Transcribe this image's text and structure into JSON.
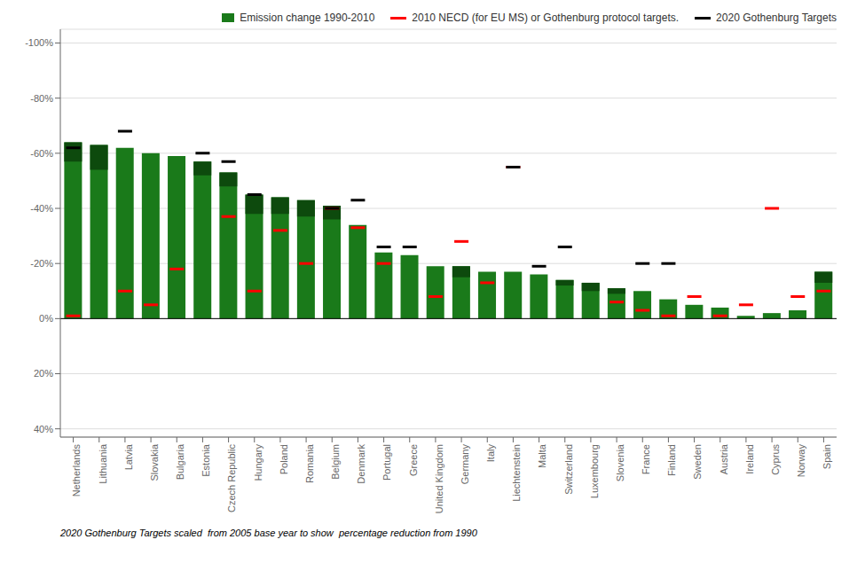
{
  "chart_data": {
    "type": "bar",
    "categories": [
      "Netherlands",
      "Lithuania",
      "Latvia",
      "Slovakia",
      "Bulgaria",
      "Estonia",
      "Czech Republic",
      "Hungary",
      "Poland",
      "Romania",
      "Belgium",
      "Denmark",
      "Portugal",
      "Greece",
      "United Kingdom",
      "Germany",
      "Italy",
      "Liechtenstein",
      "Malta",
      "Switzerland",
      "Luxembourg",
      "Slovenia",
      "France",
      "Finland",
      "Sweden",
      "Austria",
      "Ireland",
      "Cyprus",
      "Norway",
      "Spain"
    ],
    "series": [
      {
        "name": "Emission change 1990-2010",
        "type": "bar",
        "color": "#1a7a1a",
        "values": [
          -64,
          -63,
          -62,
          -60,
          -59,
          -57,
          -53,
          -45,
          -44,
          -43,
          -41,
          -34,
          -24,
          -23,
          -19,
          -19,
          -17,
          -17,
          -16,
          -14,
          -13,
          -11,
          -10,
          -7,
          -5,
          -4,
          -1,
          -2,
          -3,
          -17
        ]
      },
      {
        "type": "range_bar",
        "color": "#0d4a0d",
        "values": [
          [
            -57,
            -64
          ],
          [
            -54,
            -63
          ],
          null,
          null,
          null,
          [
            -52,
            -57
          ],
          [
            -48,
            -53
          ],
          [
            -38,
            -45
          ],
          [
            -38,
            -44
          ],
          [
            -37,
            -43
          ],
          [
            -36,
            -41
          ],
          null,
          null,
          null,
          null,
          [
            -15,
            -19
          ],
          null,
          null,
          null,
          [
            -12,
            -14
          ],
          [
            -10,
            -13
          ],
          [
            -9,
            -11
          ],
          null,
          null,
          null,
          null,
          null,
          null,
          null,
          [
            -13,
            -17
          ]
        ]
      },
      {
        "name": "2010 NECD (for EU MS) or Gothenburg protocol targets.",
        "type": "scatter",
        "marker": "hline",
        "color": "#ff0000",
        "values": [
          -1,
          null,
          -10,
          -5,
          -18,
          null,
          -37,
          -10,
          -32,
          -20,
          -40,
          -33,
          -20,
          null,
          -8,
          -28,
          -13,
          -55,
          null,
          null,
          null,
          -6,
          -3,
          -1,
          -8,
          -1,
          -5,
          -40,
          -8,
          -10
        ]
      },
      {
        "name": "2020 Gothenburg Targets",
        "type": "scatter",
        "marker": "hline",
        "color": "#000000",
        "values": [
          -62,
          null,
          -68,
          null,
          null,
          -60,
          -57,
          -45,
          null,
          null,
          -40,
          -43,
          -26,
          -26,
          null,
          null,
          null,
          -55,
          -19,
          -26,
          null,
          null,
          -20,
          -20,
          null,
          null,
          null,
          null,
          null,
          null
        ]
      }
    ],
    "annotations": [
      "2020 Gothenburg Targets scaled  from 2005 base year to show  percentage reduction from 1990"
    ],
    "ylim": [
      43,
      -105
    ],
    "yticks": [
      {
        "value": -100,
        "label": "-100%"
      },
      {
        "value": -80,
        "label": "-80%"
      },
      {
        "value": -60,
        "label": "-60%"
      },
      {
        "value": -40,
        "label": "-40%"
      },
      {
        "value": -20,
        "label": "-20%"
      },
      {
        "value": 0,
        "label": "0%"
      },
      {
        "value": 20,
        "label": "20%"
      },
      {
        "value": 40,
        "label": "40%"
      }
    ],
    "grid": true,
    "legend": "upper right"
  }
}
